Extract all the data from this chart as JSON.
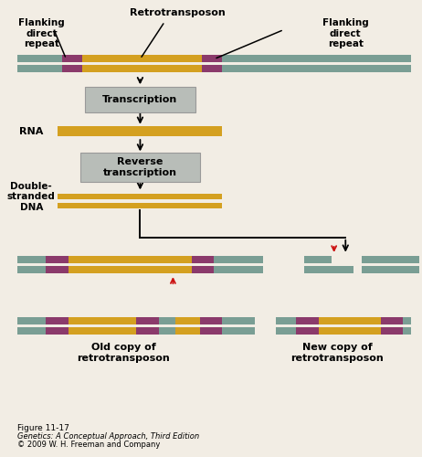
{
  "bg_color": "#f2ede4",
  "teal_color": "#7a9e94",
  "gold_color": "#d4a020",
  "purple_color": "#8b3a6b",
  "red_color": "#cc1111",
  "box_color": "#b8bdb8",
  "box_edge": "#999999",
  "label_flanking_left": "Flanking\ndirect\nrepeat",
  "label_retrotransposon": "Retrotransposon",
  "label_flanking_right": "Flanking\ndirect\nrepeat",
  "label_rna": "RNA",
  "label_dsdna": "Double-\nstranded\nDNA",
  "label_old": "Old copy of\nretrotransposon",
  "label_new": "New copy of\nretrotransposon",
  "box_transcription": "Transcription",
  "box_reverse": "Reverse\ntranscription",
  "fig_title": "Figure 11-17",
  "fig_subtitle": "Genetics: A Conceptual Approach, Third Edition",
  "fig_copy": "© 2009 W. H. Freeman and Company"
}
